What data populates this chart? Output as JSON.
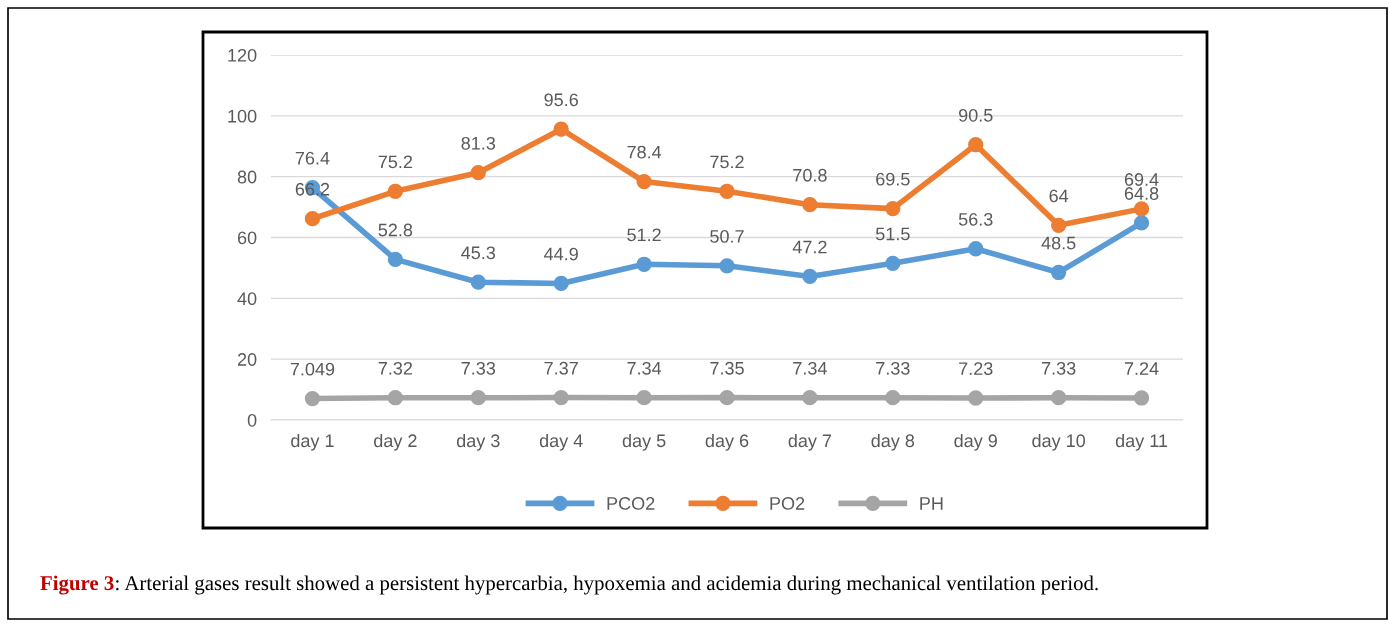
{
  "chart_data": {
    "type": "line",
    "categories": [
      "day 1",
      "day 2",
      "day 3",
      "day 4",
      "day 5",
      "day 6",
      "day 7",
      "day 8",
      "day 9",
      "day 10",
      "day 11"
    ],
    "series": [
      {
        "name": "PCO2",
        "color": "#5b9bd5",
        "values": [
          76.4,
          52.8,
          45.3,
          44.9,
          51.2,
          50.7,
          47.2,
          51.5,
          56.3,
          48.5,
          64.8
        ]
      },
      {
        "name": "PO2",
        "color": "#ed7d31",
        "values": [
          66.2,
          75.2,
          81.3,
          95.6,
          78.4,
          75.2,
          70.8,
          69.5,
          90.5,
          64,
          69.4
        ]
      },
      {
        "name": "PH",
        "color": "#a5a5a5",
        "values": [
          7.049,
          7.32,
          7.33,
          7.37,
          7.34,
          7.35,
          7.34,
          7.33,
          7.23,
          7.33,
          7.24
        ]
      }
    ],
    "ylim": [
      0,
      120
    ],
    "yticks": [
      0,
      20,
      40,
      60,
      80,
      100,
      120
    ],
    "grid": "y",
    "legend": "bottom",
    "marker": "circle",
    "line_style": "solid",
    "data_labels": true,
    "annotations": [
      "Figure 3",
      ": Arterial gases result showed a persistent hypercarbia, hypoxemia and acidemia during mechanical ventilation period."
    ]
  }
}
